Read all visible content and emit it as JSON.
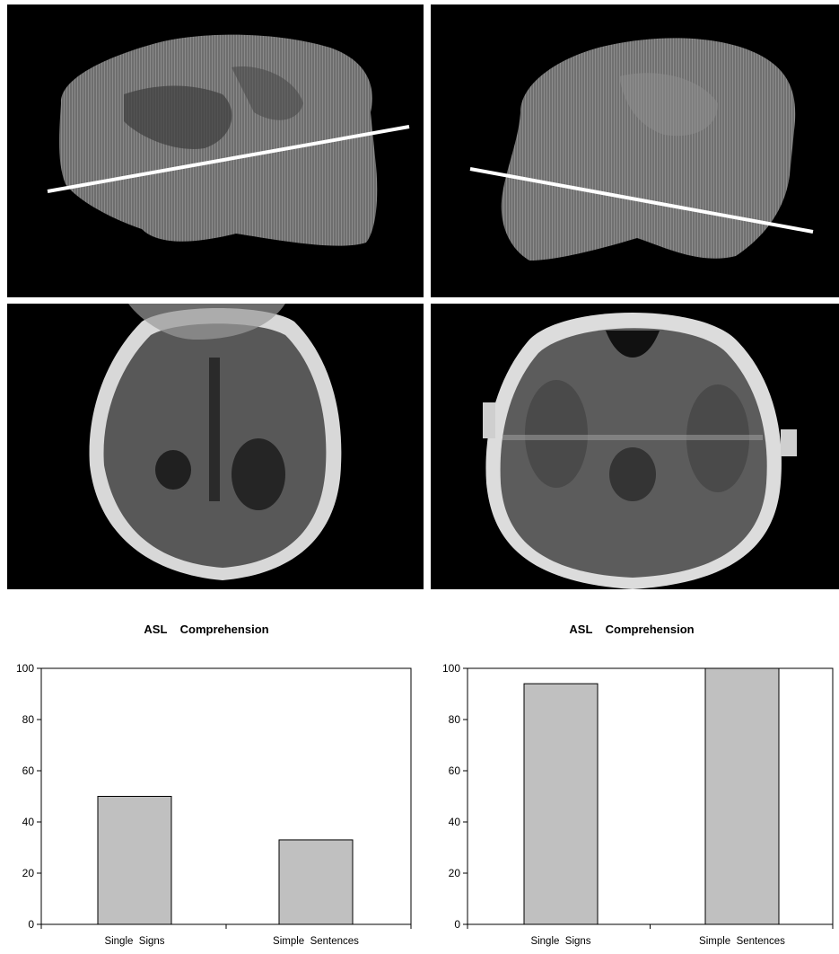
{
  "chart_data": [
    {
      "type": "bar",
      "title": "ASL    Comprehension",
      "categories": [
        "Single  Signs",
        "Simple  Sentences"
      ],
      "values": [
        50,
        33
      ],
      "ylim": [
        0,
        100
      ],
      "yticks": [
        0,
        20,
        40,
        60,
        80,
        100
      ],
      "xlabel": "",
      "ylabel": "",
      "grid": false,
      "bar_color": "#c0c0c0"
    },
    {
      "type": "bar",
      "title": "ASL    Comprehension",
      "categories": [
        "Single  Signs",
        "Simple  Sentences"
      ],
      "values": [
        94,
        100
      ],
      "ylim": [
        0,
        100
      ],
      "yticks": [
        0,
        20,
        40,
        60,
        80,
        100
      ],
      "xlabel": "",
      "ylabel": "",
      "grid": false,
      "bar_color": "#c0c0c0"
    }
  ],
  "images": {
    "top_left": "sagittal-brain-mri-with-slice-line",
    "top_right": "sagittal-brain-mri-with-slice-line",
    "bottom_left": "axial-brain-mri",
    "bottom_right": "axial-brain-mri"
  }
}
